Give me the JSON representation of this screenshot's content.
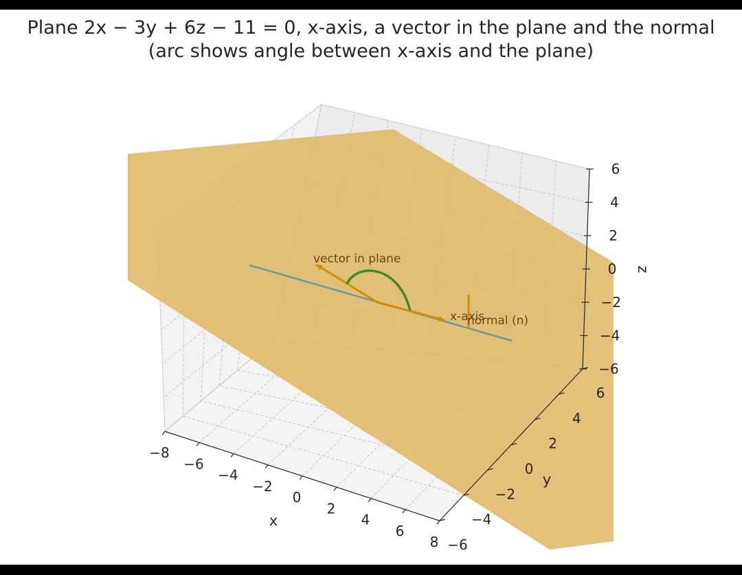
{
  "title_line1": "Plane 2x − 3y + 6z − 11 = 0, x-axis, a vector in the plane and the normal",
  "title_line2": "(arc shows angle between x-axis and the plane)",
  "chart_data": {
    "type": "3d-vector-plot",
    "plane_equation": "2x - 3y + 6z - 11 = 0",
    "plane_color": "#dfb866",
    "axes": {
      "x": {
        "label": "x",
        "lim": [
          -8,
          8
        ],
        "ticks": [
          -8,
          -6,
          -4,
          -2,
          0,
          2,
          4,
          6,
          8
        ]
      },
      "y": {
        "label": "y",
        "lim": [
          -6,
          6
        ],
        "ticks": [
          -6,
          -4,
          -2,
          0,
          2,
          4,
          6
        ]
      },
      "z": {
        "label": "z",
        "lim": [
          -6,
          6
        ],
        "ticks": [
          -6,
          -4,
          -2,
          0,
          2,
          4,
          6
        ]
      }
    },
    "grid": true,
    "elements": [
      {
        "name": "x-axis",
        "kind": "line",
        "from": [
          -8,
          0,
          0
        ],
        "to": [
          8,
          0,
          0
        ],
        "color": "#6f9a98"
      },
      {
        "name": "x-axis",
        "kind": "arrow",
        "color": "#d18d0a"
      },
      {
        "name": "vector in plane",
        "kind": "arrow",
        "color": "#d18d0a"
      },
      {
        "name": "normal (n)",
        "kind": "arrow",
        "direction": [
          2,
          -3,
          6
        ],
        "color": "#d18d0a"
      },
      {
        "name": "angle arc",
        "kind": "arc",
        "color": "#3d8c2a"
      }
    ],
    "annotations": [
      "vector in plane",
      "x-axis",
      "normal (n)"
    ]
  }
}
